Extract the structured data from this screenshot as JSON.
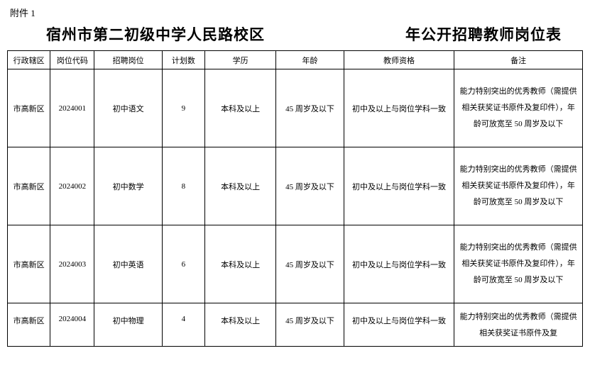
{
  "attachment_label": "附件 1",
  "title_left": "宿州市第二初级中学人民路校区",
  "title_right_prefix": "",
  "title_right_suffix": "年公开招聘教师岗位表",
  "table": {
    "columns": [
      "行政辖区",
      "岗位代码",
      "招聘岗位",
      "计划数",
      "学历",
      "年龄",
      "教师资格",
      "备注"
    ],
    "rows": [
      {
        "district": "市高新区",
        "code": "2024001",
        "position": "初中语文",
        "count": "9",
        "edu": "本科及以上",
        "age": "45 周岁及以下",
        "qual": "初中及以上与岗位学科一致",
        "note": "能力特别突出的优秀教师（需提供相关获奖证书原件及复印件），年龄可放宽至 50 周岁及以下"
      },
      {
        "district": "市高新区",
        "code": "2024002",
        "position": "初中数学",
        "count": "8",
        "edu": "本科及以上",
        "age": "45 周岁及以下",
        "qual": "初中及以上与岗位学科一致",
        "note": "能力特别突出的优秀教师（需提供相关获奖证书原件及复印件），年龄可放宽至 50 周岁及以下"
      },
      {
        "district": "市高新区",
        "code": "2024003",
        "position": "初中英语",
        "count": "6",
        "edu": "本科及以上",
        "age": "45 周岁及以下",
        "qual": "初中及以上与岗位学科一致",
        "note": "能力特别突出的优秀教师（需提供相关获奖证书原件及复印件），年龄可放宽至 50 周岁及以下"
      },
      {
        "district": "市高新区",
        "code": "2024004",
        "position": "初中物理",
        "count": "4",
        "edu": "本科及以上",
        "age": "45 周岁及以下",
        "qual": "初中及以上与岗位学科一致",
        "note": "能力特别突出的优秀教师（需提供相关获奖证书原件及复"
      }
    ]
  },
  "colors": {
    "background": "#ffffff",
    "text": "#000000",
    "border": "#000000"
  }
}
